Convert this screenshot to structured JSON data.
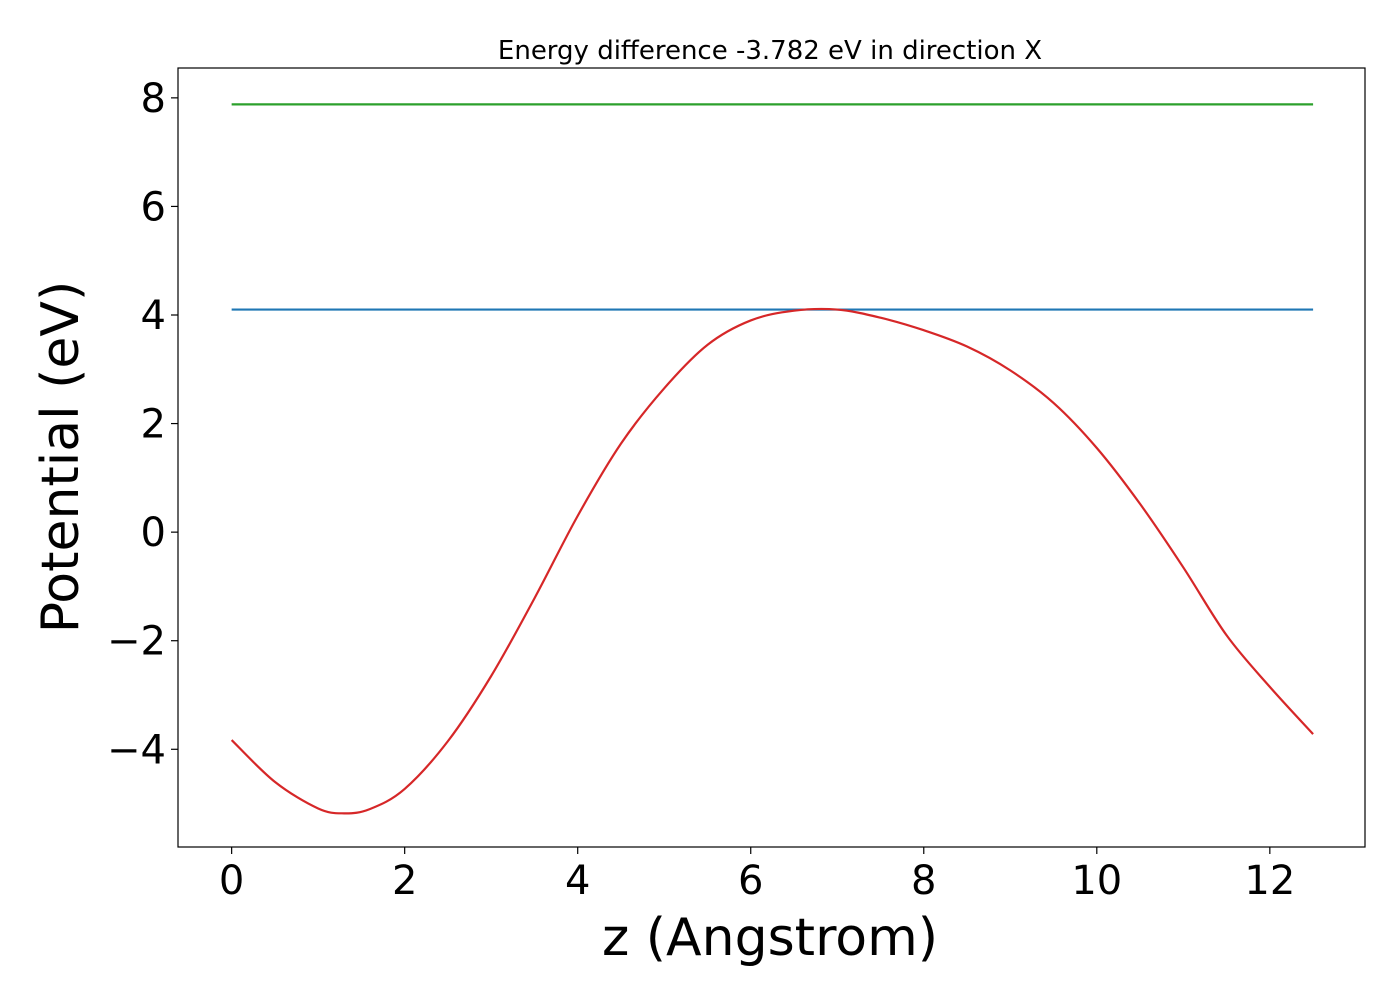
{
  "chart_data": {
    "type": "line",
    "title": "Energy difference -3.782 eV in direction X",
    "xlabel": "z (Angstrom)",
    "ylabel": "Potential (eV)",
    "xlim": [
      -0.62,
      13.1
    ],
    "ylim": [
      -5.8,
      8.55
    ],
    "xticks": [
      0,
      2,
      4,
      6,
      8,
      10,
      12
    ],
    "xtick_labels": [
      "0",
      "2",
      "4",
      "6",
      "8",
      "10",
      "12"
    ],
    "yticks": [
      -4,
      -2,
      0,
      2,
      4,
      6,
      8
    ],
    "ytick_labels": [
      "−4",
      "−2",
      "0",
      "2",
      "4",
      "6",
      "8"
    ],
    "grid": false,
    "series": [
      {
        "color": "#2ca02c",
        "x": [
          0,
          12.5
        ],
        "y": [
          7.88,
          7.88
        ]
      },
      {
        "color": "#1f77b4",
        "x": [
          0,
          12.5
        ],
        "y": [
          4.1,
          4.1
        ]
      },
      {
        "color": "#d62728",
        "x": [
          0,
          0.5,
          1.0,
          1.3,
          1.6,
          2.0,
          2.5,
          3.0,
          3.5,
          4.0,
          4.5,
          5.0,
          5.5,
          6.0,
          6.5,
          7.0,
          7.5,
          8.0,
          8.5,
          9.0,
          9.5,
          10.0,
          10.5,
          11.0,
          11.5,
          12.0,
          12.5
        ],
        "y": [
          -3.83,
          -4.6,
          -5.09,
          -5.18,
          -5.1,
          -4.73,
          -3.85,
          -2.65,
          -1.22,
          0.3,
          1.63,
          2.65,
          3.45,
          3.9,
          4.08,
          4.1,
          3.95,
          3.72,
          3.42,
          2.98,
          2.38,
          1.55,
          0.52,
          -0.65,
          -1.9,
          -2.85,
          -3.72
        ]
      }
    ]
  }
}
